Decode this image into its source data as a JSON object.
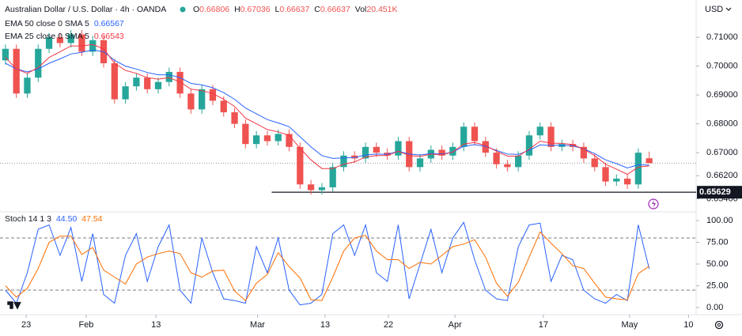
{
  "chart_data": [
    {
      "type": "candlestick",
      "title": "Australian Dollar / U.S. Dollar · 4h · OANDA",
      "currency": "USD",
      "ohlc_keys": [
        "O",
        "H",
        "L",
        "C"
      ],
      "volume_key": "Vol",
      "volume": "20.451K",
      "up_color": "#26a69a",
      "down_color": "#ef5350",
      "open": [
        0.702,
        0.706,
        0.6905,
        0.696,
        0.706,
        0.71,
        0.708,
        0.711,
        0.705,
        0.709,
        0.701,
        0.6885,
        0.693,
        0.696,
        0.692,
        0.6945,
        0.698,
        0.6905,
        0.685,
        0.692,
        0.688,
        0.684,
        0.68,
        0.673,
        0.676,
        0.674,
        0.6765,
        0.672,
        0.659,
        0.657,
        0.658,
        0.665,
        0.669,
        0.668,
        0.672,
        0.67,
        0.669,
        0.674,
        0.665,
        0.668,
        0.671,
        0.669,
        0.672,
        0.679,
        0.674,
        0.67,
        0.666,
        0.665,
        0.669,
        0.676,
        0.679,
        0.672,
        0.673,
        0.672,
        0.668,
        0.665,
        0.66,
        0.661,
        0.659,
        0.66806
      ],
      "high": [
        0.7075,
        0.7075,
        0.6975,
        0.7075,
        0.7115,
        0.7115,
        0.7125,
        0.7125,
        0.7105,
        0.7105,
        0.7025,
        0.6945,
        0.6975,
        0.6975,
        0.696,
        0.6995,
        0.6995,
        0.692,
        0.6935,
        0.6935,
        0.6895,
        0.6855,
        0.6815,
        0.6775,
        0.6775,
        0.678,
        0.678,
        0.6735,
        0.6605,
        0.6595,
        0.6665,
        0.6705,
        0.6705,
        0.6735,
        0.6735,
        0.6715,
        0.6755,
        0.6755,
        0.6695,
        0.6725,
        0.6725,
        0.6735,
        0.6805,
        0.6805,
        0.6755,
        0.6715,
        0.6675,
        0.6705,
        0.6775,
        0.6805,
        0.6805,
        0.6745,
        0.6745,
        0.6735,
        0.6695,
        0.6665,
        0.6625,
        0.6625,
        0.6715,
        0.67036
      ],
      "low": [
        0.7005,
        0.689,
        0.689,
        0.6945,
        0.7045,
        0.7065,
        0.7065,
        0.7035,
        0.7035,
        0.6995,
        0.687,
        0.687,
        0.6915,
        0.6905,
        0.6905,
        0.693,
        0.689,
        0.6835,
        0.6835,
        0.6865,
        0.6825,
        0.6785,
        0.6715,
        0.6715,
        0.6725,
        0.6725,
        0.6705,
        0.6575,
        0.6555,
        0.6555,
        0.6565,
        0.6635,
        0.6665,
        0.6665,
        0.6685,
        0.6675,
        0.6675,
        0.6635,
        0.6635,
        0.6665,
        0.6675,
        0.6675,
        0.6705,
        0.6725,
        0.6685,
        0.6645,
        0.6635,
        0.6635,
        0.6675,
        0.6745,
        0.6705,
        0.6705,
        0.6705,
        0.6665,
        0.6635,
        0.6585,
        0.6585,
        0.6575,
        0.6575,
        0.66637
      ],
      "close": [
        0.706,
        0.6905,
        0.696,
        0.706,
        0.71,
        0.708,
        0.711,
        0.705,
        0.709,
        0.701,
        0.6885,
        0.693,
        0.696,
        0.692,
        0.6945,
        0.698,
        0.6905,
        0.685,
        0.692,
        0.688,
        0.684,
        0.68,
        0.673,
        0.676,
        0.674,
        0.6765,
        0.672,
        0.659,
        0.657,
        0.658,
        0.665,
        0.669,
        0.668,
        0.672,
        0.67,
        0.669,
        0.674,
        0.665,
        0.668,
        0.671,
        0.669,
        0.672,
        0.679,
        0.674,
        0.67,
        0.666,
        0.665,
        0.669,
        0.676,
        0.679,
        0.672,
        0.673,
        0.672,
        0.668,
        0.665,
        0.66,
        0.661,
        0.659,
        0.67,
        0.66637
      ],
      "series": [
        {
          "name": "EMA 50 close 0 SMA 5",
          "color": "#2962ff",
          "values": [
            0.701,
            0.699,
            0.698,
            0.699,
            0.701,
            0.7025,
            0.7042,
            0.7048,
            0.7056,
            0.705,
            0.702,
            0.7,
            0.699,
            0.6978,
            0.697,
            0.697,
            0.696,
            0.694,
            0.6935,
            0.6925,
            0.6908,
            0.6885,
            0.6855,
            0.6835,
            0.6815,
            0.6803,
            0.679,
            0.6755,
            0.672,
            0.669,
            0.668,
            0.6682,
            0.6683,
            0.6692,
            0.6695,
            0.6694,
            0.6705,
            0.6695,
            0.6692,
            0.6697,
            0.6695,
            0.6702,
            0.6722,
            0.6728,
            0.6722,
            0.6708,
            0.6695,
            0.6694,
            0.6708,
            0.6727,
            0.6725,
            0.6726,
            0.6724,
            0.6713,
            0.6697,
            0.6675,
            0.6662,
            0.6647,
            0.6658,
            0.66567
          ]
        },
        {
          "name": "EMA 25 close 0 SMA 5",
          "color": "#f23645",
          "values": [
            0.703,
            0.699,
            0.6975,
            0.6995,
            0.703,
            0.705,
            0.707,
            0.707,
            0.7075,
            0.706,
            0.701,
            0.6985,
            0.6975,
            0.696,
            0.6955,
            0.696,
            0.6945,
            0.692,
            0.6915,
            0.6905,
            0.6885,
            0.686,
            0.682,
            0.68,
            0.678,
            0.6772,
            0.676,
            0.6715,
            0.6675,
            0.6645,
            0.6645,
            0.666,
            0.6668,
            0.6685,
            0.669,
            0.669,
            0.6705,
            0.669,
            0.6687,
            0.6695,
            0.6693,
            0.6702,
            0.673,
            0.6735,
            0.6725,
            0.6705,
            0.6688,
            0.6688,
            0.6712,
            0.674,
            0.6733,
            0.6732,
            0.6728,
            0.6712,
            0.669,
            0.666,
            0.6643,
            0.6625,
            0.665,
            0.66543
          ]
        }
      ],
      "support": {
        "value": 0.65629,
        "x_start": 24.4
      },
      "ylim": [
        0.6503,
        0.7221
      ],
      "yticks": [
        {
          "value": 0.71,
          "label": "0.71000"
        },
        {
          "value": 0.7,
          "label": "0.70000"
        },
        {
          "value": 0.69,
          "label": "0.69000"
        },
        {
          "value": 0.68,
          "label": "0.68000"
        },
        {
          "value": 0.67,
          "label": "0.67000"
        },
        {
          "value": 0.662,
          "label": "0.66200"
        },
        {
          "value": 0.654,
          "label": "0.65400"
        }
      ]
    },
    {
      "type": "stochastic",
      "title": "Stoch 14 1 3",
      "series": [
        {
          "name": "%K",
          "color": "#2962ff",
          "value_label": "44.50",
          "values": [
            20,
            5,
            40,
            90,
            95,
            60,
            92,
            30,
            85,
            15,
            5,
            60,
            85,
            30,
            70,
            95,
            20,
            5,
            80,
            40,
            10,
            8,
            5,
            70,
            40,
            80,
            20,
            3,
            5,
            15,
            85,
            95,
            60,
            95,
            40,
            30,
            95,
            10,
            50,
            90,
            40,
            80,
            98,
            55,
            20,
            10,
            8,
            70,
            95,
            97,
            30,
            60,
            55,
            20,
            10,
            5,
            15,
            8,
            95,
            44.5
          ]
        },
        {
          "name": "%D",
          "color": "#ff6d00",
          "value_label": "47.54",
          "values": [
            25,
            12,
            22,
            45,
            75,
            82,
            82,
            61,
            69,
            43,
            35,
            27,
            50,
            58,
            62,
            65,
            62,
            40,
            35,
            42,
            43,
            19,
            8,
            28,
            38,
            63,
            47,
            34,
            9,
            8,
            35,
            65,
            80,
            83,
            65,
            55,
            55,
            45,
            52,
            50,
            60,
            70,
            73,
            78,
            58,
            28,
            13,
            29,
            58,
            87,
            74,
            62,
            48,
            45,
            28,
            12,
            10,
            9,
            39,
            47.54
          ]
        }
      ],
      "levels": [
        80,
        20
      ],
      "ylim": [
        -8.2,
        108.2
      ],
      "yticks": [
        {
          "value": 100,
          "label": "100.00"
        },
        {
          "value": 75,
          "label": "75.00"
        },
        {
          "value": 50,
          "label": "50.00"
        },
        {
          "value": 25,
          "label": "25.00"
        },
        {
          "value": 0,
          "label": "0.00"
        }
      ],
      "xlim": [
        -0.5,
        63.3
      ],
      "xticks": [
        {
          "value": 1.9,
          "label": "23"
        },
        {
          "value": 7.4,
          "label": "Feb"
        },
        {
          "value": 13.8,
          "label": "13"
        },
        {
          "value": 23.1,
          "label": "Mar"
        },
        {
          "value": 29.3,
          "label": "13"
        },
        {
          "value": 35.1,
          "label": "22"
        },
        {
          "value": 41.2,
          "label": "Apr"
        },
        {
          "value": 49.3,
          "label": "17"
        },
        {
          "value": 57.2,
          "label": "May"
        },
        {
          "value": 62.6,
          "label": "10"
        }
      ]
    }
  ]
}
